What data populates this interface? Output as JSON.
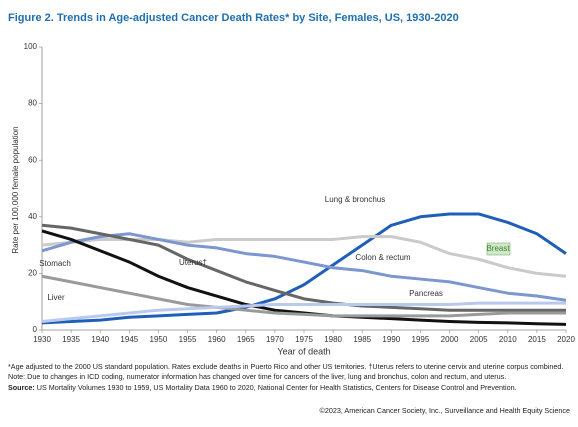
{
  "chart_data": {
    "type": "line",
    "title": "Figure 2. Trends in Age-adjusted Cancer Death Rates* by Site, Females, US, 1930-2020",
    "y_label": "Rate per 100,000 female population",
    "x_label": "Year of death",
    "x": [
      1930,
      1935,
      1940,
      1945,
      1950,
      1955,
      1960,
      1965,
      1970,
      1975,
      1980,
      1985,
      1990,
      1995,
      2000,
      2005,
      2010,
      2015,
      2020
    ],
    "xlim": [
      1930,
      2020
    ],
    "xticks": [
      1930,
      1935,
      1940,
      1945,
      1950,
      1955,
      1960,
      1965,
      1970,
      1975,
      1980,
      1985,
      1990,
      1995,
      2000,
      2005,
      2010,
      2015,
      2020
    ],
    "ylim": [
      0,
      100
    ],
    "yticks": [
      0,
      20,
      40,
      60,
      80,
      100
    ],
    "grid": false,
    "series": [
      {
        "name": "Lung & bronchus",
        "color": "#1f5fb8",
        "values": [
          2.5,
          3,
          3.5,
          4.5,
          5,
          5.5,
          6,
          8,
          11,
          16,
          23,
          30,
          37,
          40,
          41,
          41,
          38,
          34,
          27
        ]
      },
      {
        "name": "Breast",
        "color": "#cacaca",
        "values": [
          30,
          31,
          32,
          32,
          32,
          31,
          32,
          32,
          32,
          32,
          32,
          33,
          33,
          31,
          27,
          25,
          22,
          20,
          19
        ]
      },
      {
        "name": "Colon & rectum",
        "color": "#7b96d0",
        "values": [
          28,
          31,
          33,
          34,
          32,
          30,
          29,
          27,
          26,
          24,
          22,
          21,
          19,
          18,
          17,
          15,
          13,
          12,
          10.5
        ]
      },
      {
        "name": "Stomach",
        "color": "#111111",
        "values": [
          35,
          32,
          28,
          24,
          19,
          15,
          12,
          9,
          7,
          6,
          5,
          4.5,
          4,
          3.5,
          3,
          2.7,
          2.5,
          2.2,
          2
        ]
      },
      {
        "name": "Uterus†",
        "color": "#666666",
        "values": [
          37,
          36,
          34,
          32,
          30,
          25,
          21,
          17,
          14,
          11,
          9.5,
          8.5,
          8,
          7.5,
          7,
          7,
          7,
          7,
          7
        ]
      },
      {
        "name": "Liver",
        "color": "#9a9a9a",
        "values": [
          19,
          17,
          15,
          13,
          11,
          9,
          8,
          7,
          6,
          5.5,
          5,
          5,
          5,
          5,
          5,
          5.5,
          6,
          6,
          6
        ]
      },
      {
        "name": "Pancreas",
        "color": "#b9c9ee",
        "values": [
          3,
          4,
          5,
          6,
          7,
          7.5,
          8,
          8.5,
          9,
          9,
          9,
          9,
          9,
          9,
          9,
          9.5,
          9.5,
          9.5,
          9.5
        ]
      }
    ],
    "footnote": "*Age adjusted to the 2000 US standard population. Rates exclude deaths in Puerto Rico and other US territories. †Uterus refers to uterine cervix and uterine corpus combined. Note: Due to changes in ICD coding, numerator information has changed over time for cancers of the liver, lung and bronchus, colon and rectum, and uterus.",
    "source_label": "Source:",
    "source": "US Mortality Volumes 1930 to 1959, US Mortality Data 1960 to 2020, National Center for Health Statistics, Centers for Disease Control and Prevention.",
    "copyright": "©2023, American Cancer Society, Inc., Surveillance and Health Equity Science"
  }
}
